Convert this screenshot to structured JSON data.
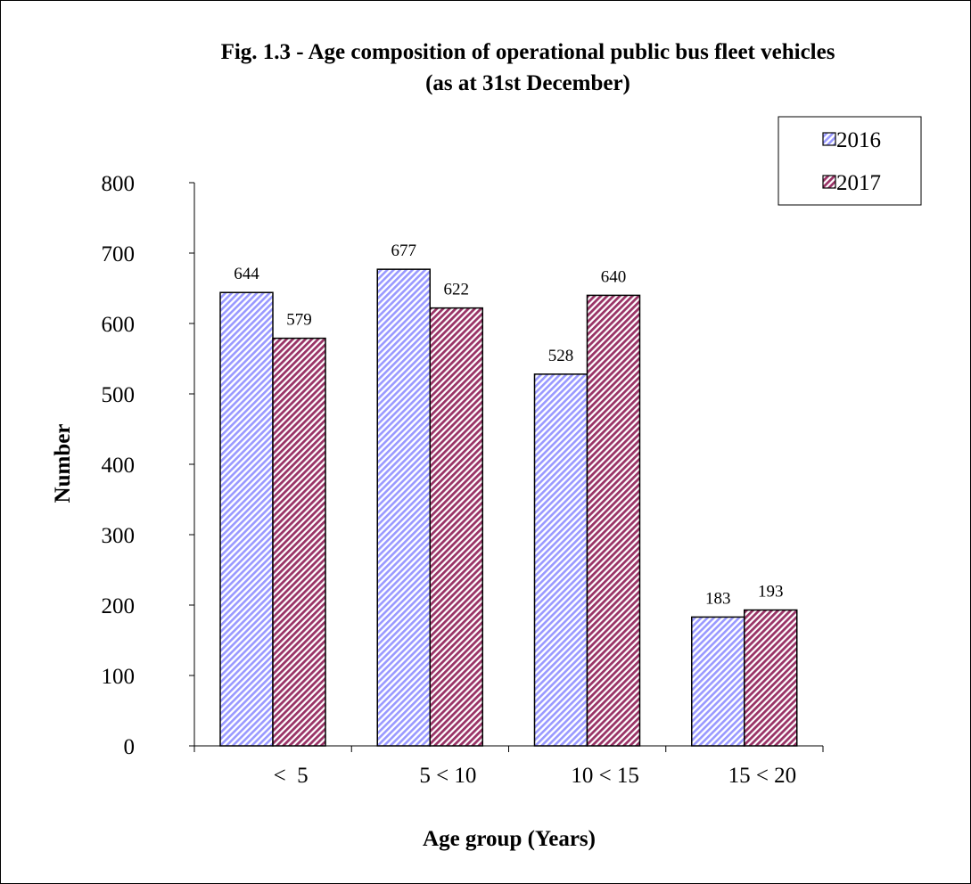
{
  "chart_data": {
    "type": "bar",
    "title": "Fig. 1.3 - Age composition of operational public bus fleet vehicles",
    "subtitle": "(as at 31st December)",
    "xlabel": "Age group (Years)",
    "ylabel": "Number",
    "categories": [
      "<  5",
      "5 < 10",
      "10 < 15",
      "15 < 20"
    ],
    "series": [
      {
        "name": "2016",
        "values": [
          644,
          677,
          528,
          183
        ],
        "color": "#9999ff",
        "pattern": "diagonal-stripes"
      },
      {
        "name": "2017",
        "values": [
          579,
          622,
          640,
          193
        ],
        "color": "#993366",
        "pattern": "diagonal-stripes"
      }
    ],
    "ylim": [
      0,
      800
    ],
    "yticks": [
      0,
      100,
      200,
      300,
      400,
      500,
      600,
      700,
      800
    ],
    "grid": false,
    "legend": "top-right",
    "data_labels": true
  }
}
